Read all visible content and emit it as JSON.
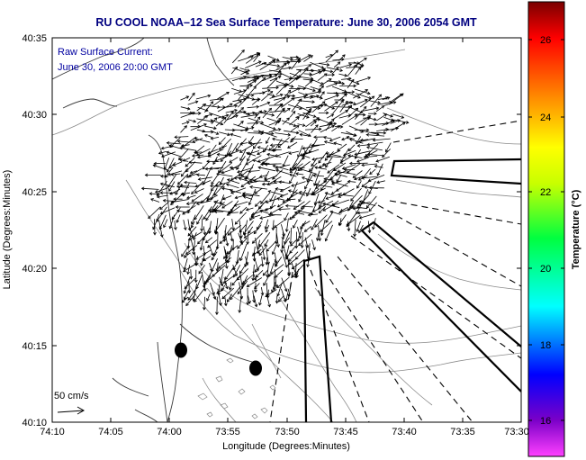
{
  "title": "RU COOL  NOAA–12  Sea Surface Temperature:  June 30, 2006 2054 GMT",
  "overlay": {
    "line1": "Raw Surface Current:",
    "line2": "June 30, 2006 20:00 GMT"
  },
  "scale_label": "50 cm/s",
  "axes": {
    "xlabel": "Longitude (Degrees:Minutes)",
    "ylabel": "Latitude (Degrees:Minutes)",
    "x_ticks": [
      "74:10",
      "74:05",
      "74:00",
      "73:55",
      "73:50",
      "73:45",
      "73:40",
      "73:35",
      "73:30"
    ],
    "y_ticks": [
      "40:35",
      "40:30",
      "40:25",
      "40:20",
      "40:15",
      "40:10"
    ]
  },
  "colorbar": {
    "label": "Temperature (°C)",
    "ticks": [
      "26",
      "24",
      "22",
      "20",
      "18",
      "16"
    ],
    "range": [
      15.2,
      27.4
    ]
  },
  "colors": {
    "title": "#000080",
    "overlay_text": "#0000a0",
    "frame": "#000000",
    "contour": "#7f7f7f",
    "coast": "#333333"
  }
}
